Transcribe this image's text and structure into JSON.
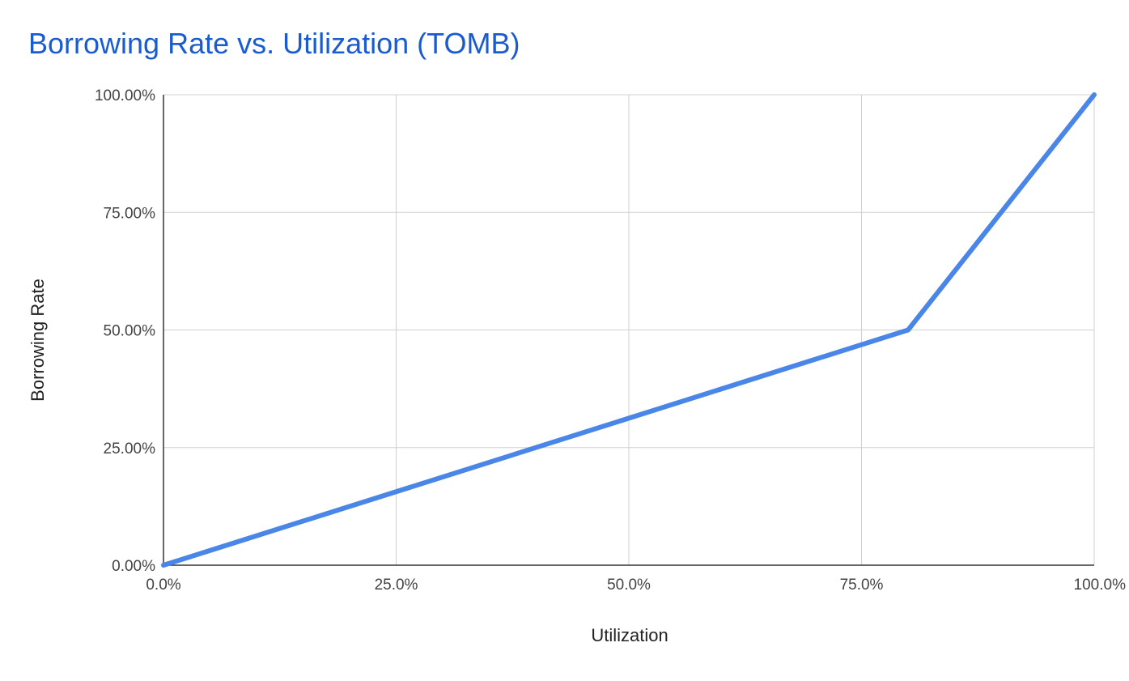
{
  "chart_data": {
    "type": "line",
    "title": "Borrowing Rate vs. Utilization (TOMB)",
    "xlabel": "Utilization",
    "ylabel": "Borrowing Rate",
    "xlim": [
      0,
      100
    ],
    "ylim": [
      0,
      100
    ],
    "x_ticks": [
      "0.0%",
      "25.0%",
      "50.0%",
      "75.0%",
      "100.0%"
    ],
    "y_ticks": [
      "0.00%",
      "25.00%",
      "50.00%",
      "75.00%",
      "100.00%"
    ],
    "grid": true,
    "legend": "none",
    "series": [
      {
        "color": "#4a86e8",
        "points": [
          {
            "x": 0,
            "y": 0
          },
          {
            "x": 80,
            "y": 50
          },
          {
            "x": 100,
            "y": 100
          }
        ]
      }
    ]
  }
}
